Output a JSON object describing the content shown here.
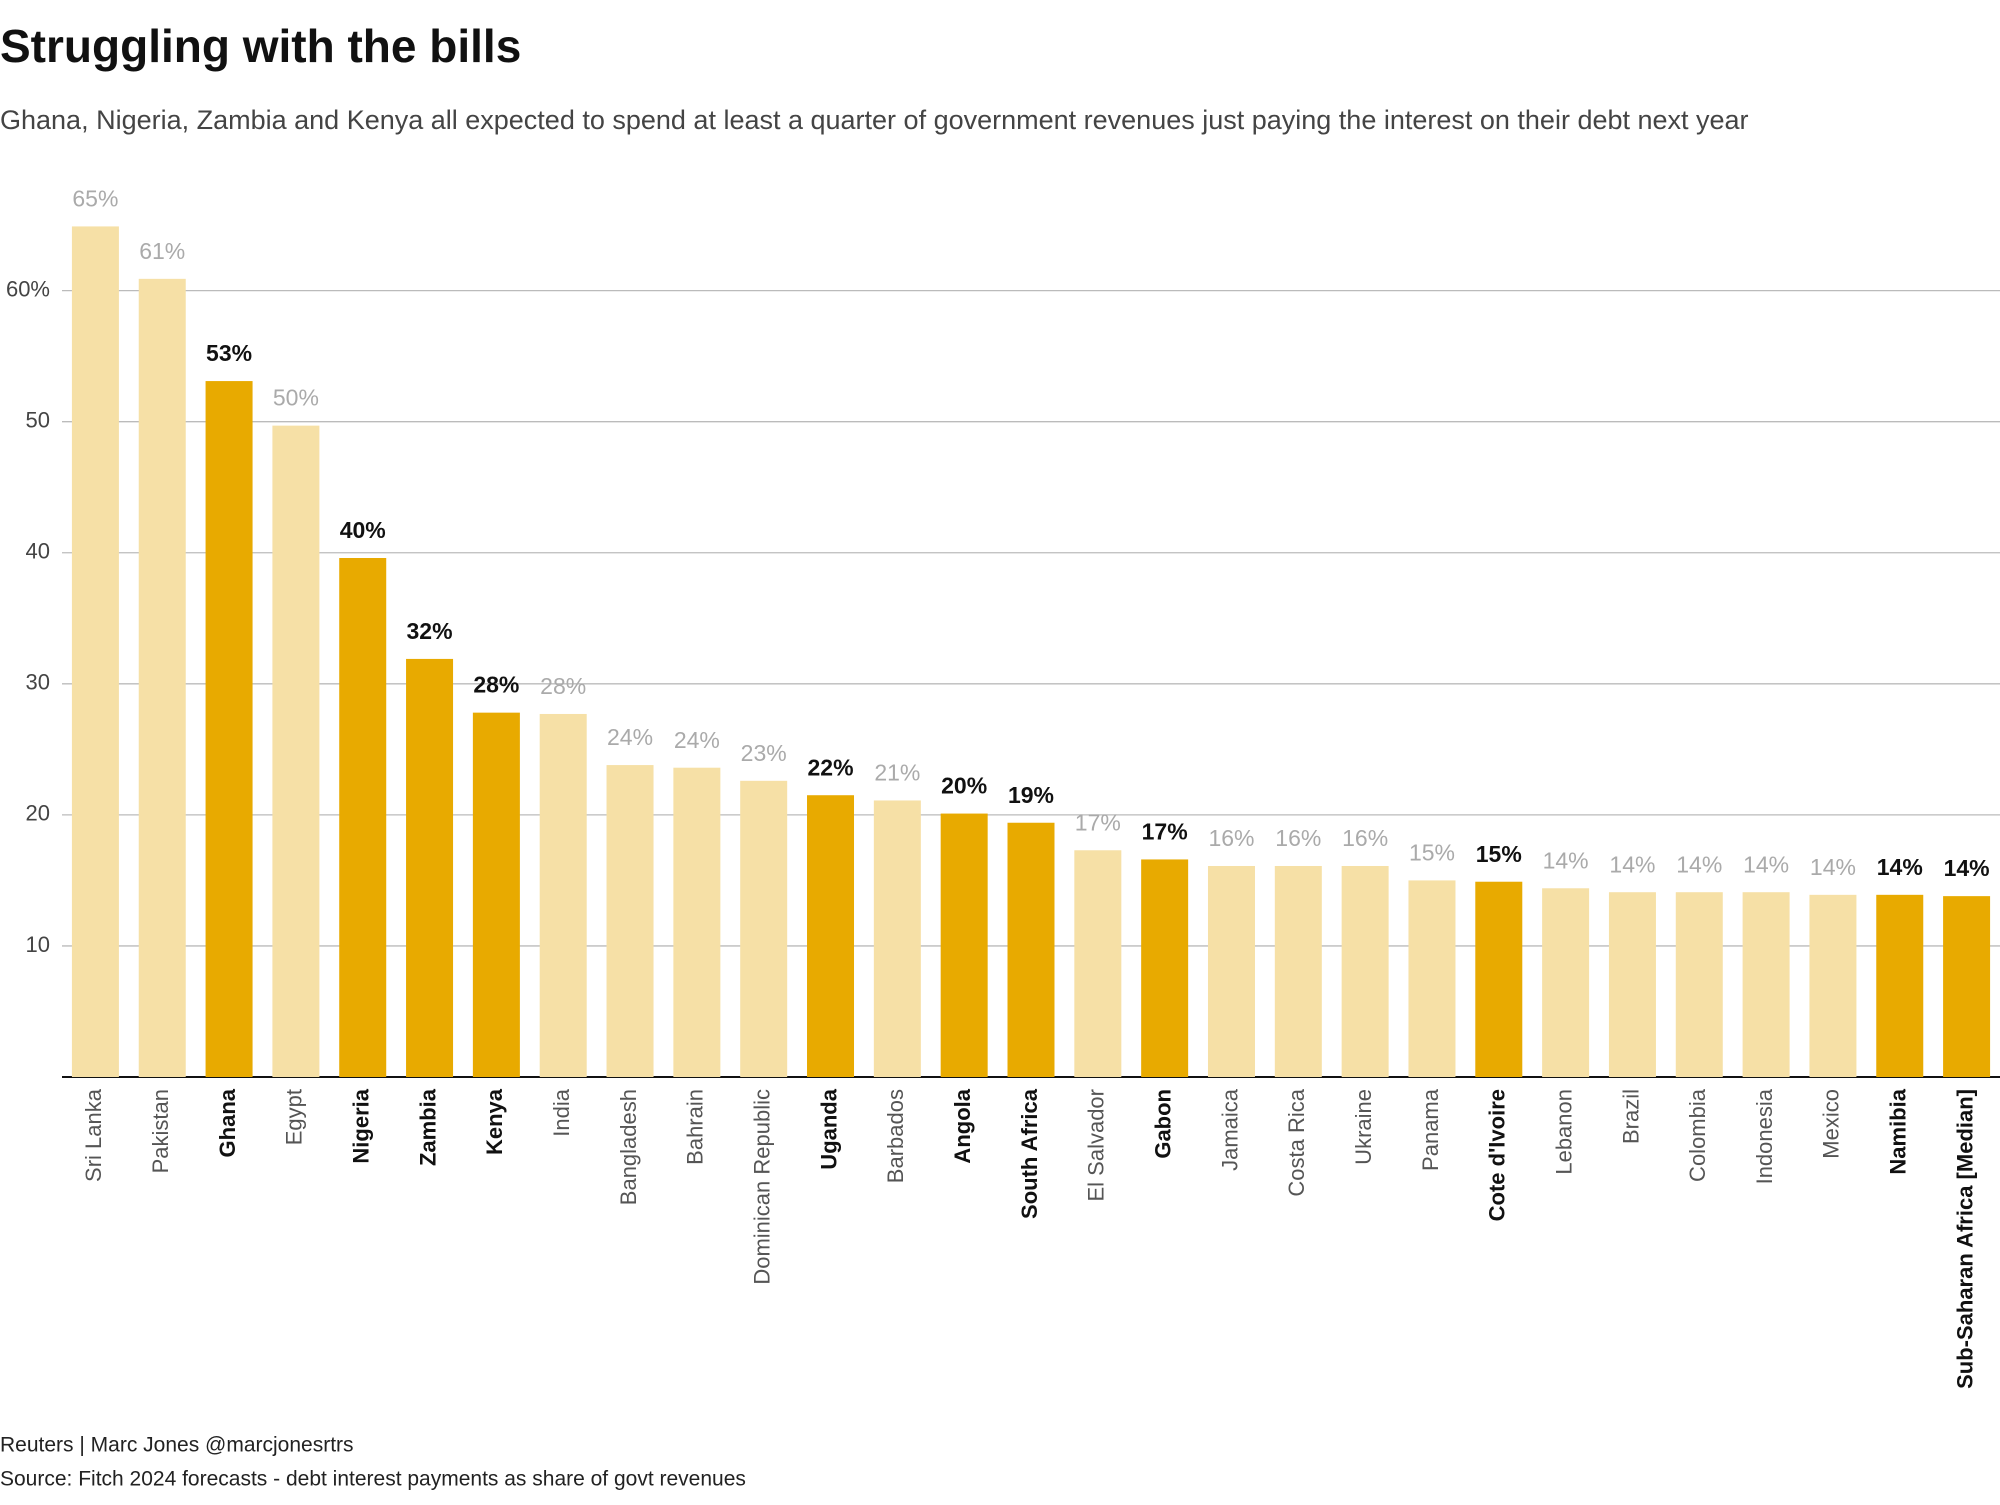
{
  "chart_data": {
    "type": "bar",
    "title": "Struggling with the bills",
    "subtitle": "Ghana, Nigeria, Zambia and Kenya all expected to spend at least a quarter of government revenues just paying the interest on their debt next year",
    "categories": [
      "Sri Lanka",
      "Pakistan",
      "Ghana",
      "Egypt",
      "Nigeria",
      "Zambia",
      "Kenya",
      "India",
      "Bangladesh",
      "Bahrain",
      "Dominican Republic",
      "Uganda",
      "Barbados",
      "Angola",
      "South Africa",
      "El Salvador",
      "Gabon",
      "Jamaica",
      "Costa Rica",
      "Ukraine",
      "Panama",
      "Cote d'Ivoire",
      "Lebanon",
      "Brazil",
      "Colombia",
      "Indonesia",
      "Mexico",
      "Namibia",
      "Sub-Saharan Africa [Median]"
    ],
    "values": [
      64.9,
      60.9,
      53.1,
      49.7,
      39.6,
      31.9,
      27.8,
      27.7,
      23.8,
      23.6,
      22.6,
      21.5,
      21.1,
      20.1,
      19.4,
      17.3,
      16.6,
      16.1,
      16.1,
      16.1,
      15.0,
      14.9,
      14.4,
      14.1,
      14.1,
      14.1,
      13.9,
      13.9,
      13.8
    ],
    "value_labels": [
      "65%",
      "61%",
      "53%",
      "50%",
      "40%",
      "32%",
      "28%",
      "28%",
      "24%",
      "24%",
      "23%",
      "22%",
      "21%",
      "20%",
      "19%",
      "17%",
      "17%",
      "16%",
      "16%",
      "16%",
      "15%",
      "15%",
      "14%",
      "14%",
      "14%",
      "14%",
      "14%",
      "14%",
      "14%"
    ],
    "highlight": [
      false,
      false,
      true,
      false,
      true,
      true,
      true,
      false,
      false,
      false,
      false,
      true,
      false,
      true,
      true,
      false,
      true,
      false,
      false,
      false,
      false,
      true,
      false,
      false,
      false,
      false,
      false,
      true,
      true
    ],
    "color": "#f6e0a6",
    "highlight_color": "#e8aa00",
    "ylim": [
      0,
      66
    ],
    "yticks": [
      10,
      20,
      30,
      40,
      50,
      {
        "value": 60,
        "label": "60%"
      }
    ],
    "grid": true,
    "footer": "Reuters | Marc Jones @marcjonesrtrs",
    "source": "Source: Fitch 2024 forecasts - debt interest payments as share of govt revenues"
  }
}
